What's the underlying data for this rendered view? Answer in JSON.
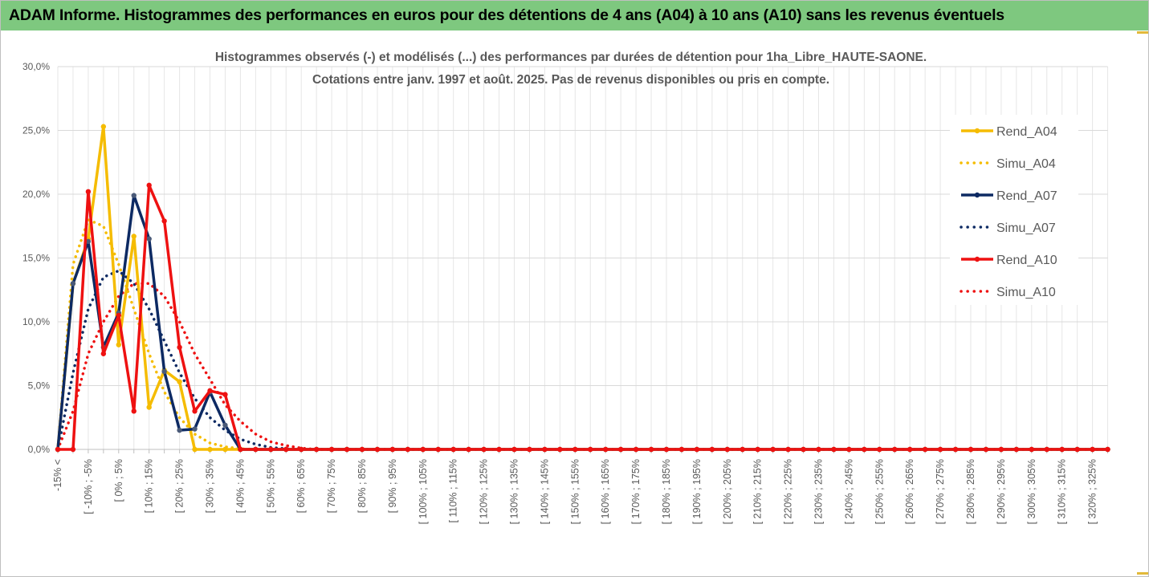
{
  "banner": {
    "title": "ADAM Informe. Histogrammes des performances en euros pour des détentions de 4 ans (A04) à 10 ans (A10) sans les revenus éventuels"
  },
  "colors": {
    "banner_bg": "#7ec87f",
    "gold": "#f5bc00",
    "navy": "#0d2a63",
    "red": "#ee1111"
  },
  "chart_data": {
    "type": "line",
    "title": "Histogrammes observés (-) et modélisés (...) des performances par durées de détention pour 1ha_Libre_HAUTE-SAONE.",
    "subtitle": "Cotations entre janv. 1997 et août. 2025. Pas de revenus disponibles ou pris en compte.",
    "ylim": [
      0,
      30
    ],
    "yticks": [
      "30,0%",
      "25,0%",
      "20,0%",
      "15,0%",
      "10,0%",
      "5,0%",
      "0,0%"
    ],
    "grid": true,
    "legend_position": "right",
    "x_labels": [
      "-15% <",
      "[ -10% ; -5%",
      "[ 0% ; 5%",
      "[ 10% ; 15%",
      "[ 20% ; 25%",
      "[ 30% ; 35%",
      "[ 40% ; 45%",
      "[ 50% ; 55%",
      "[ 60% ; 65%",
      "[ 70% ; 75%",
      "[ 80% ; 85%",
      "[ 90% ; 95%",
      "[ 100% ; 105%",
      "[ 110% ; 115%",
      "[ 120% ; 125%",
      "[ 130% ; 135%",
      "[ 140% ; 145%",
      "[ 150% ; 155%",
      "[ 160% ; 165%",
      "[ 170% ; 175%",
      "[ 180% ; 185%",
      "[ 190% ; 195%",
      "[ 200% ; 205%",
      "[ 210% ; 215%",
      "[ 220% ; 225%",
      "[ 230% ; 235%",
      "[ 240% ; 245%",
      "[ 250% ; 255%",
      "[ 260% ; 265%",
      "[ 270% ; 275%",
      "[ 280% ; 285%",
      "[ 290% ; 295%",
      "[ 300% ; 305%",
      "[ 310% ; 315%",
      "[ 320% ; 325%"
    ],
    "n_bins": 70,
    "series": [
      {
        "name": "Rend_A04",
        "style": "solid",
        "color": "#f5bc00",
        "values": [
          0,
          13,
          16.5,
          25.3,
          8.2,
          16.7,
          3.3,
          6.2,
          5.3,
          0,
          0,
          0,
          0
        ]
      },
      {
        "name": "Simu_A04",
        "style": "dotted",
        "color": "#f5bc00",
        "values": [
          0,
          14.5,
          18,
          17.5,
          14.5,
          11,
          7.5,
          4.5,
          2.5,
          1.2,
          0.5,
          0.2,
          0.05,
          0
        ]
      },
      {
        "name": "Rend_A07",
        "style": "solid",
        "color": "#0d2a63",
        "values": [
          0,
          13,
          16.3,
          8,
          10.7,
          19.9,
          16.5,
          6.1,
          1.5,
          1.6,
          4.5,
          1.9,
          0
        ]
      },
      {
        "name": "Simu_A07",
        "style": "dotted",
        "color": "#0d2a63",
        "values": [
          0,
          6,
          11,
          13.5,
          14,
          13,
          11,
          8.5,
          6,
          4,
          2.5,
          1.5,
          0.8,
          0.4,
          0.15,
          0.05,
          0
        ]
      },
      {
        "name": "Rend_A10",
        "style": "solid",
        "color": "#ee1111",
        "values": [
          0,
          0,
          20.2,
          7.5,
          10.5,
          3,
          20.7,
          17.9,
          8,
          3,
          4.6,
          4.3,
          0
        ]
      },
      {
        "name": "Simu_A10",
        "style": "dotted",
        "color": "#ee1111",
        "values": [
          0,
          3,
          7.5,
          10,
          12,
          13,
          13,
          12,
          10,
          7.5,
          5.5,
          3.5,
          2.2,
          1.2,
          0.6,
          0.3,
          0.1,
          0
        ]
      }
    ]
  }
}
